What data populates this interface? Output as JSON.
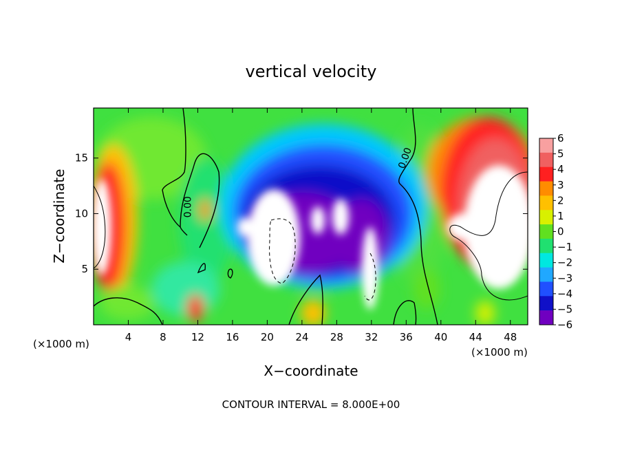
{
  "chart_data": {
    "type": "heatmap",
    "title": "vertical velocity",
    "xlabel": "X−coordinate",
    "ylabel": "Z−coordinate",
    "x_unit_left": "(×1000 m)",
    "x_unit_right": "(×1000 m)",
    "footer": "CONTOUR INTERVAL = 8.000E+00",
    "xlim": [
      0,
      50
    ],
    "ylim": [
      0,
      19.5
    ],
    "x_ticks": [
      4,
      8,
      12,
      16,
      20,
      24,
      28,
      32,
      36,
      40,
      44,
      48
    ],
    "y_ticks": [
      5,
      10,
      15
    ],
    "colorbar": {
      "levels": [
        6,
        5,
        4,
        3,
        2,
        1,
        0,
        -1,
        -2,
        -3,
        -4,
        -5,
        -6
      ],
      "labels": [
        "6",
        "5",
        "4",
        "3",
        "2",
        "1",
        "0",
        "−1",
        "−2",
        "−3",
        "−4",
        "−5",
        "−6"
      ],
      "colors": [
        "#f8a0a0",
        "#f06060",
        "#ff2020",
        "#ff8c00",
        "#ffc000",
        "#d8f000",
        "#60e020",
        "#20e070",
        "#00e8e0",
        "#20a8ff",
        "#2050ff",
        "#1010c8",
        "#7000c0"
      ]
    },
    "contour_labels": [
      {
        "text": "0.00",
        "x": 11.2,
        "y": 10.6,
        "rotate": -90
      },
      {
        "text": "0.00",
        "x": 36.2,
        "y": 14.9,
        "rotate": -70
      }
    ]
  }
}
